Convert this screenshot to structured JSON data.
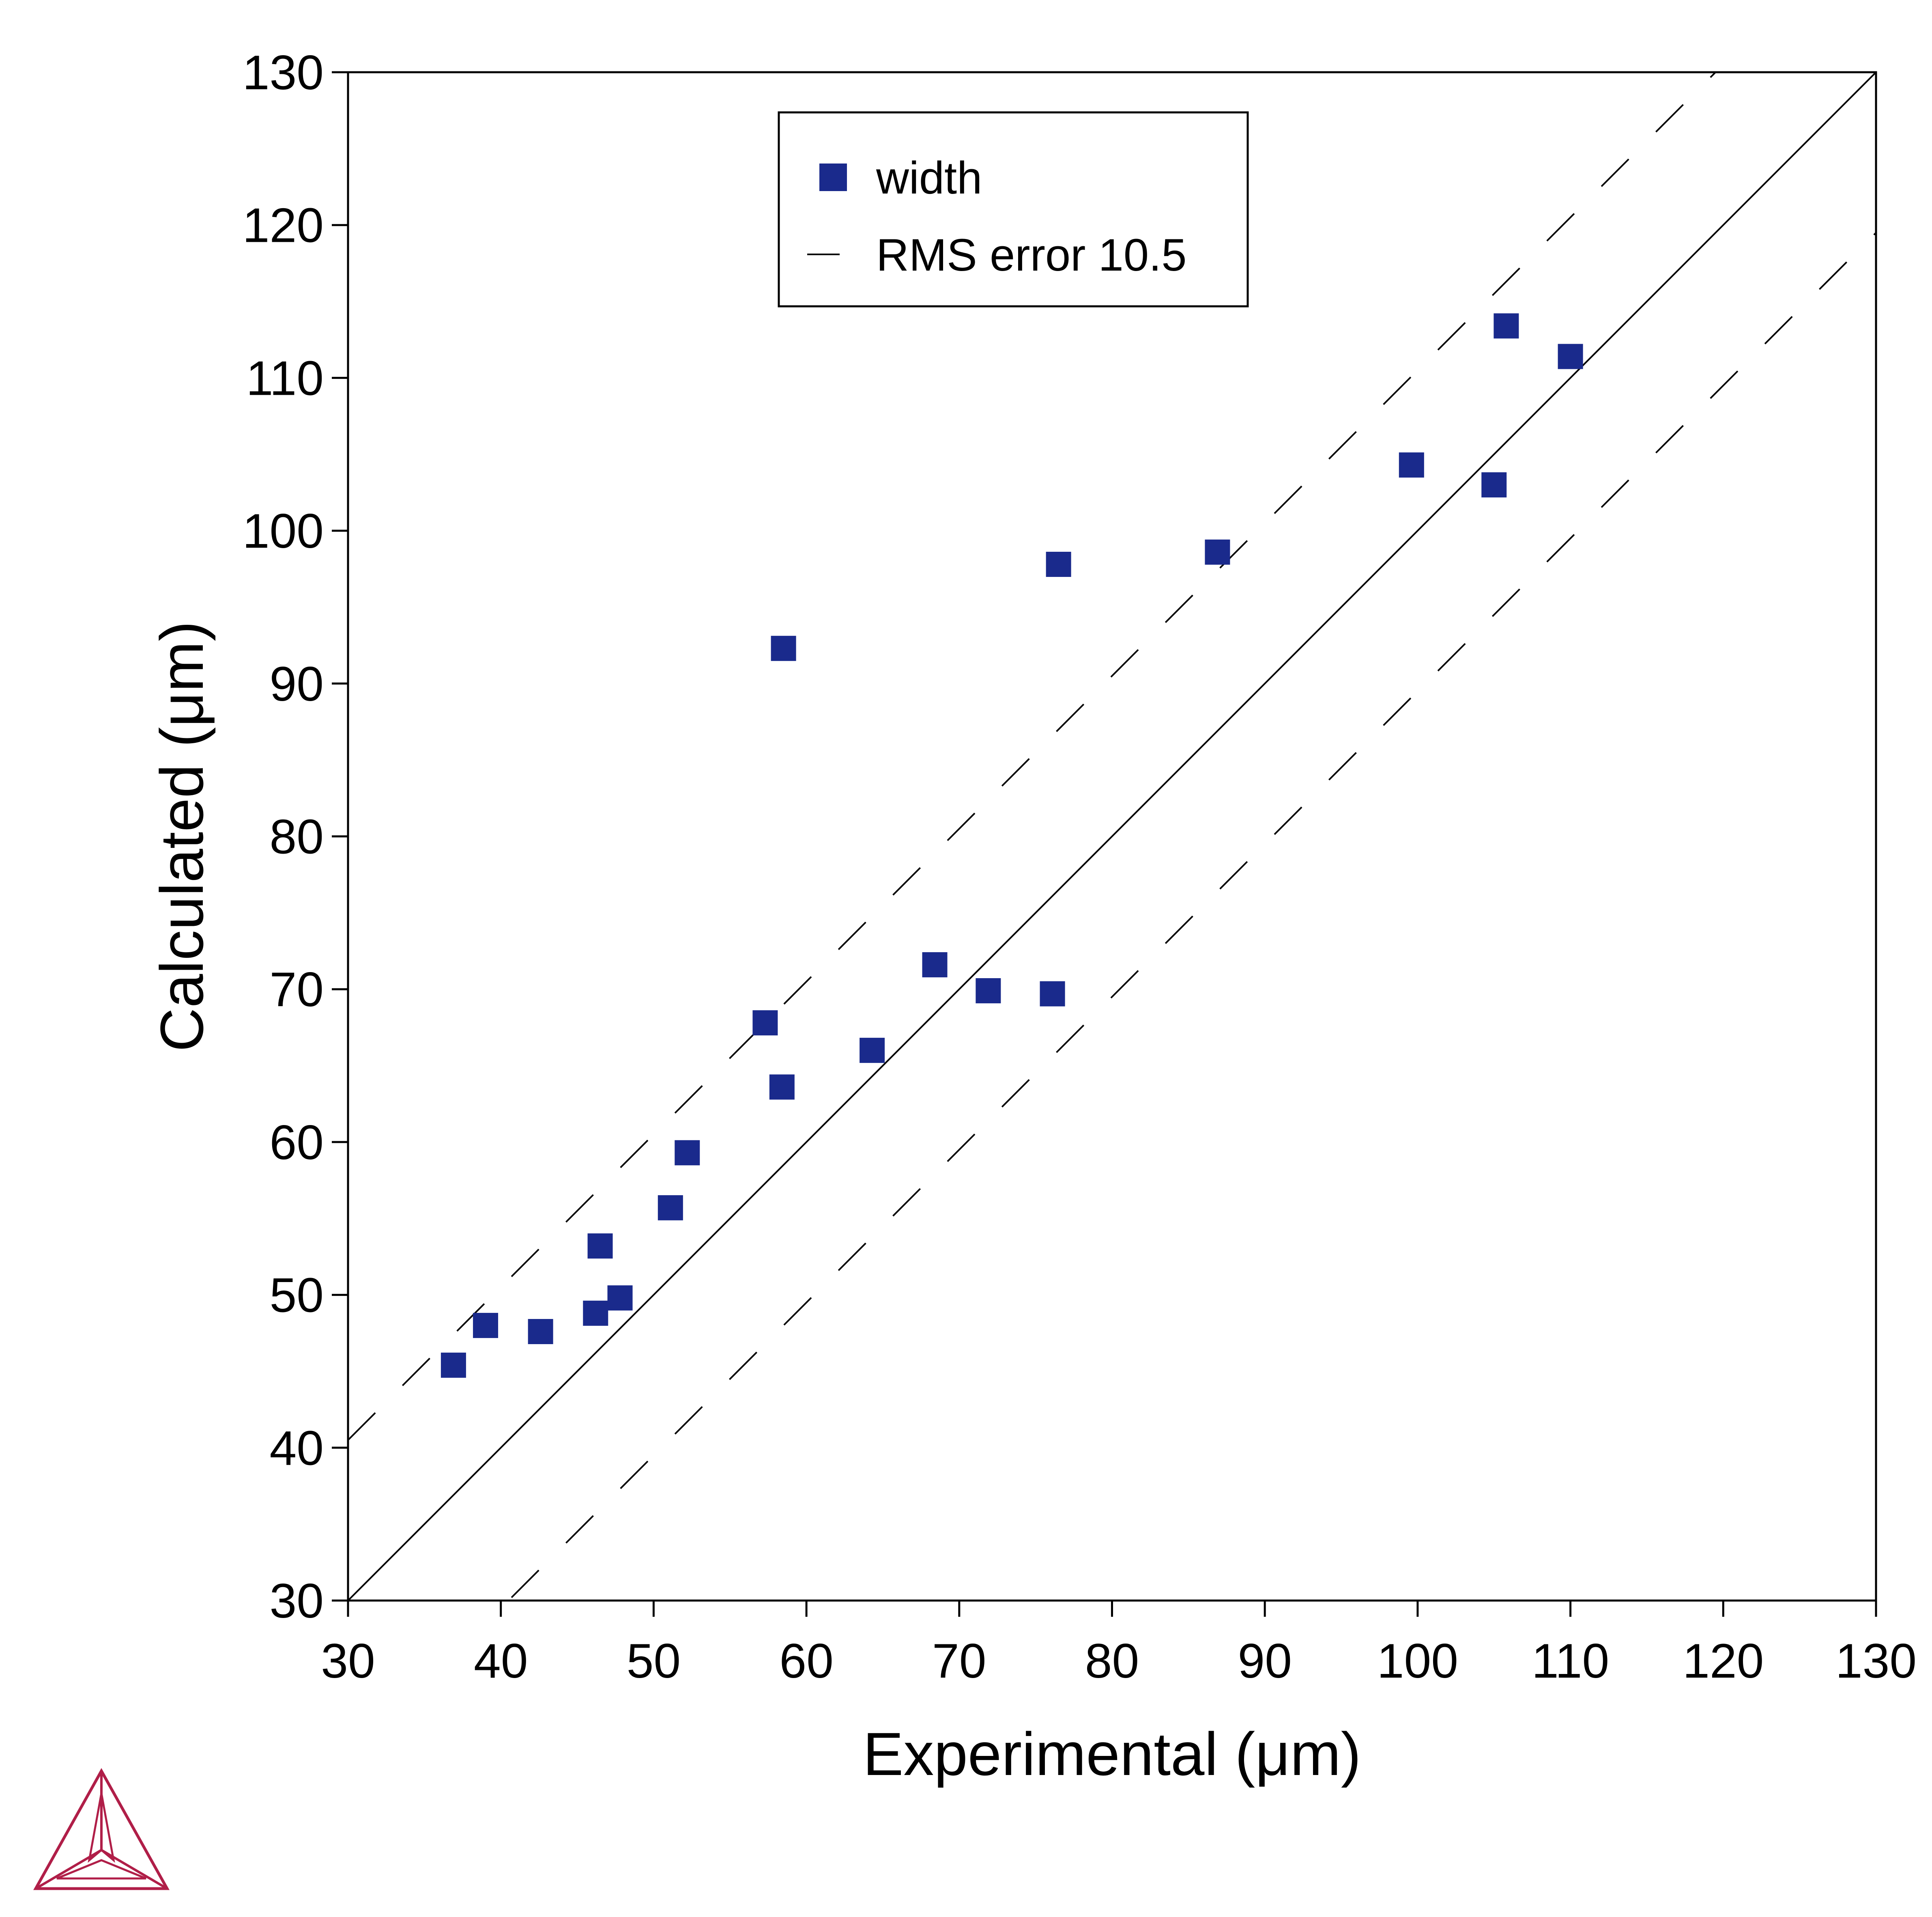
{
  "chart_data": {
    "type": "scatter",
    "xlabel": "Experimental (μm)",
    "ylabel": "Calculated (μm)",
    "xlim": [
      30,
      130
    ],
    "ylim": [
      30,
      130
    ],
    "xticks": [
      30,
      40,
      50,
      60,
      70,
      80,
      90,
      100,
      110,
      120,
      130
    ],
    "yticks": [
      30,
      40,
      50,
      60,
      70,
      80,
      90,
      100,
      110,
      120,
      130
    ],
    "grid": false,
    "legend_position": "top-center",
    "series": [
      {
        "name": "width",
        "marker": "square",
        "color": "#1a2a8c",
        "points": [
          [
            36.9,
            45.4
          ],
          [
            39.0,
            48.0
          ],
          [
            42.6,
            47.6
          ],
          [
            46.2,
            48.8
          ],
          [
            46.5,
            53.2
          ],
          [
            47.8,
            49.8
          ],
          [
            51.1,
            55.7
          ],
          [
            52.2,
            59.3
          ],
          [
            57.3,
            67.8
          ],
          [
            58.4,
            63.6
          ],
          [
            58.5,
            92.3
          ],
          [
            64.3,
            66.0
          ],
          [
            68.4,
            71.6
          ],
          [
            71.9,
            69.9
          ],
          [
            76.1,
            69.7
          ],
          [
            76.5,
            97.8
          ],
          [
            86.9,
            98.6
          ],
          [
            99.6,
            104.3
          ],
          [
            105.0,
            103.0
          ],
          [
            105.8,
            113.4
          ],
          [
            110.0,
            111.4
          ]
        ]
      }
    ],
    "reference_lines": [
      {
        "name": "identity",
        "style": "solid",
        "offset": 0
      },
      {
        "name": "RMS error 10.5",
        "style": "dashed",
        "offset": 10.5
      },
      {
        "name": "RMS error 10.5",
        "style": "dashed",
        "offset": -10.5
      }
    ],
    "legend": [
      {
        "label": "width",
        "symbol": "square"
      },
      {
        "label": "RMS error 10.5",
        "symbol": "dash"
      }
    ]
  },
  "logo": {
    "name": "triangle-logo",
    "color": "#b01e48"
  }
}
